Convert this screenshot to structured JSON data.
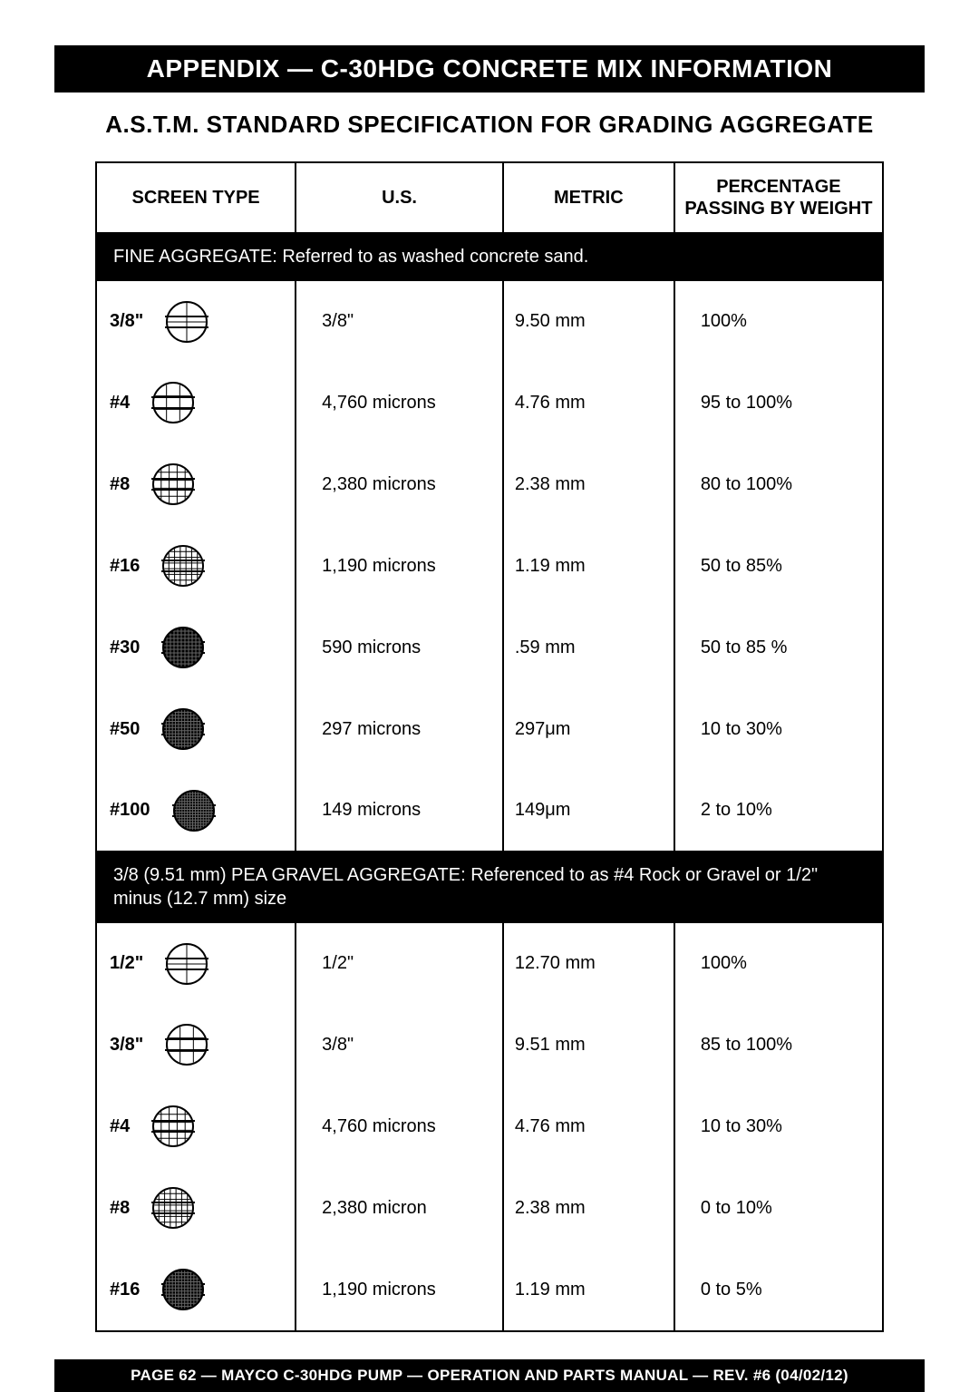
{
  "titleBar": "APPENDIX — C-30HDG  CONCRETE MIX INFORMATION",
  "subtitle": "A.S.T.M. STANDARD SPECIFICATION FOR GRADING AGGREGATE",
  "columns": {
    "screen": "SCREEN TYPE",
    "us": "U.S.",
    "metric": "METRIC",
    "pct": "PERCENTAGE PASSING BY WEIGHT"
  },
  "section1": "FINE AGGREGATE: Referred to as washed concrete sand.",
  "fine": [
    {
      "screen": "3/8\"",
      "mesh": 1,
      "us": "3/8\"",
      "metric": "9.50 mm",
      "pct": "100%"
    },
    {
      "screen": "#4",
      "mesh": 2,
      "us": "4,760 microns",
      "metric": "4.76 mm",
      "pct": "95 to 100%"
    },
    {
      "screen": "#8",
      "mesh": 4,
      "us": "2,380 microns",
      "metric": "2.38 mm",
      "pct": "80 to 100%"
    },
    {
      "screen": "#16",
      "mesh": 6,
      "us": "1,190 microns",
      "metric": "1.19 mm",
      "pct": "50 to 85%"
    },
    {
      "screen": "#30",
      "mesh": 10,
      "us": "590 microns",
      "metric": ".59 mm",
      "pct": "50 to 85 %"
    },
    {
      "screen": "#50",
      "mesh": 12,
      "us": "297 microns",
      "metric": "297μm",
      "pct": "10 to 30%"
    },
    {
      "screen": "#100",
      "mesh": 16,
      "us": "149 microns",
      "metric": "149μm",
      "pct": "2 to 10%"
    }
  ],
  "section2": "3/8 (9.51 mm) PEA GRAVEL AGGREGATE:  Referenced to as #4 Rock or Gravel or 1/2\" minus (12.7 mm) size",
  "gravel": [
    {
      "screen": "1/2\"",
      "mesh": 1,
      "us": "1/2\"",
      "metric": "12.70 mm",
      "pct": "100%"
    },
    {
      "screen": "3/8\"",
      "mesh": 2,
      "us": "3/8\"",
      "metric": "9.51 mm",
      "pct": "85 to 100%"
    },
    {
      "screen": "#4",
      "mesh": 4,
      "us": "4,760 microns",
      "metric": "4.76 mm",
      "pct": "10 to 30%"
    },
    {
      "screen": "#8",
      "mesh": 6,
      "us": "2,380 micron",
      "metric": "2.38 mm",
      "pct": "0 to 10%"
    },
    {
      "screen": "#16",
      "mesh": 12,
      "us": "1,190 microns",
      "metric": "1.19 mm",
      "pct": "0 to 5%"
    }
  ],
  "footer": "PAGE 62 — MAYCO C-30HDG PUMP — OPERATION AND PARTS MANUAL — REV. #6 (04/02/12)",
  "iconStroke": "#000000",
  "meshFillThreshold": 8
}
